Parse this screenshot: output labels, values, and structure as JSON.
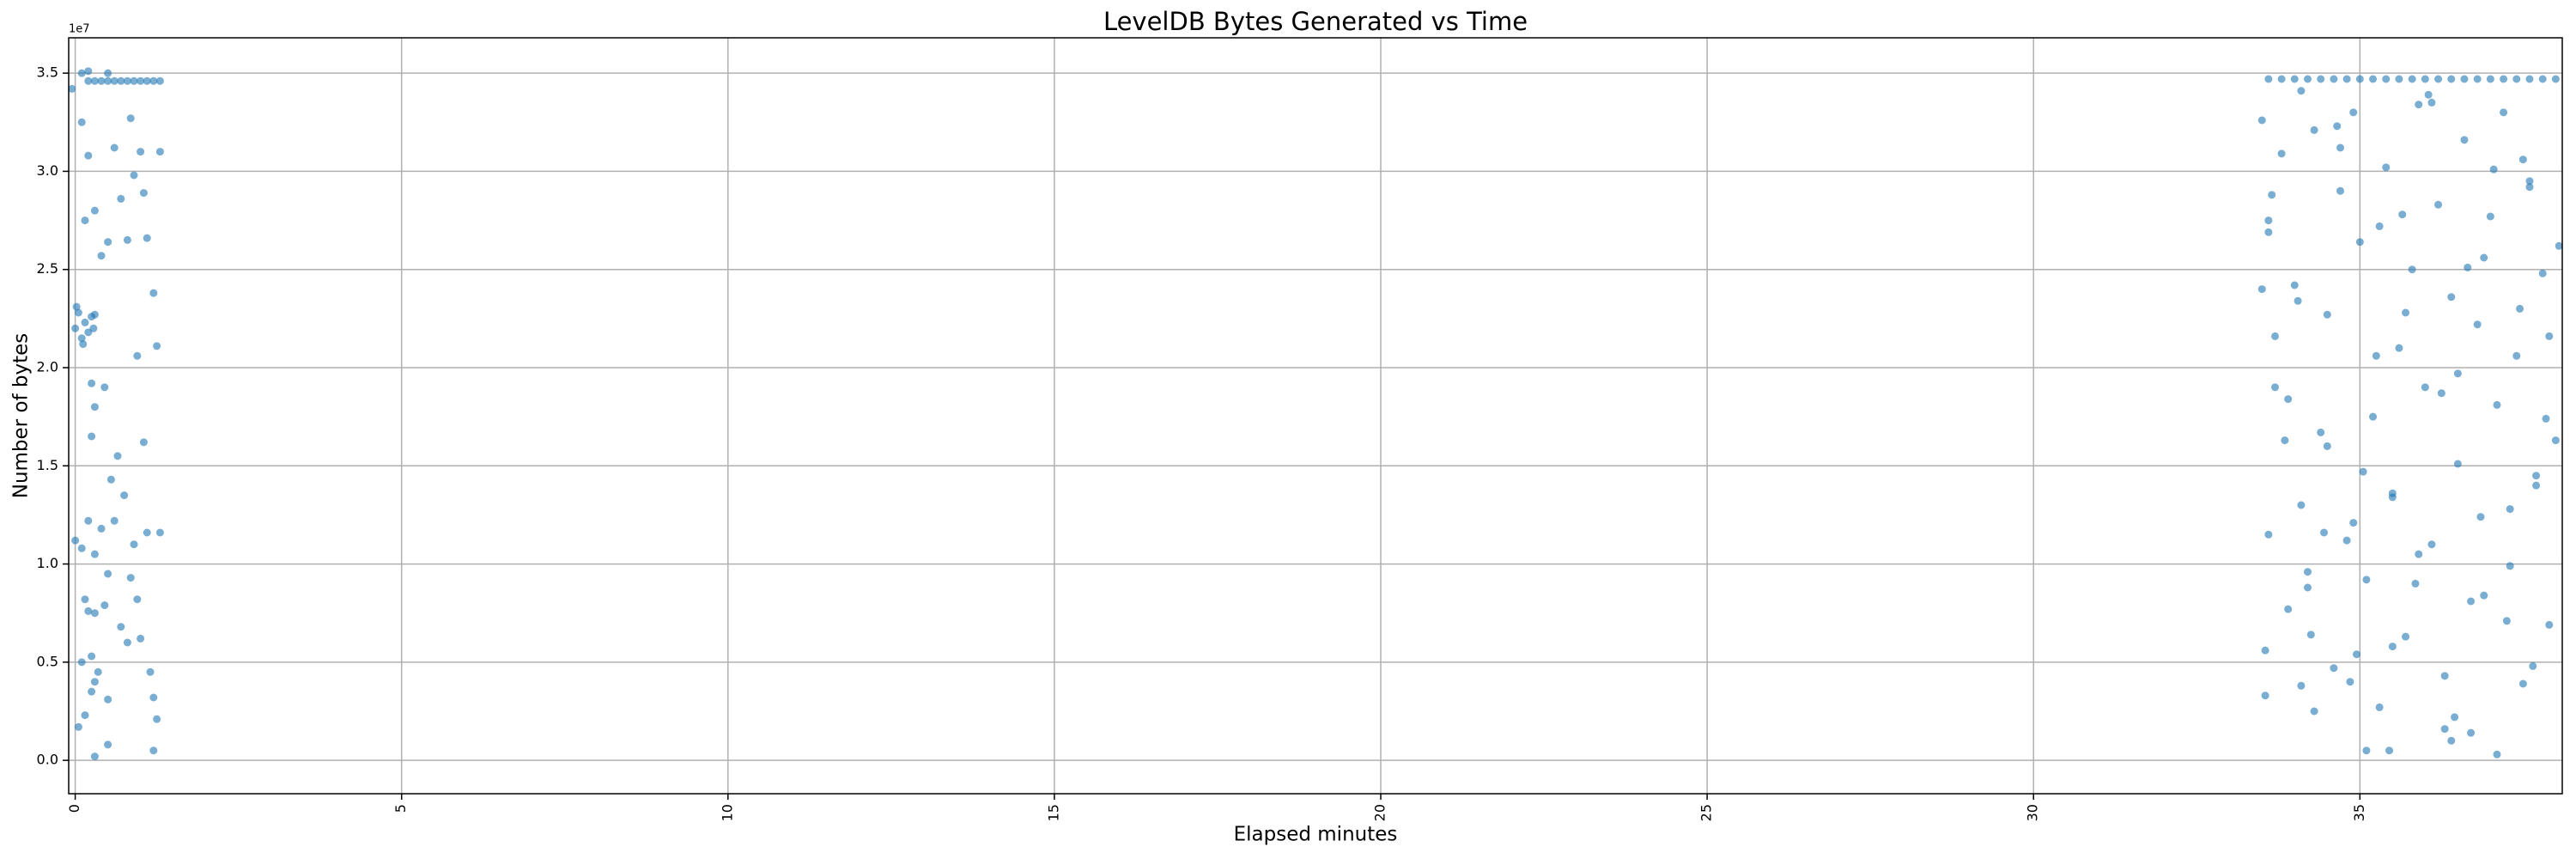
{
  "chart_data": {
    "type": "scatter",
    "title": "LevelDB Bytes Generated vs Time",
    "x_label": "Elapsed minutes",
    "y_label": "Number of bytes",
    "y_offset_label": "1e7",
    "color": "#1f77b4",
    "grid": true,
    "xlim": [
      -0.1,
      38.1
    ],
    "ylim": [
      -1700000,
      36800000
    ],
    "xticks": [
      0,
      5,
      10,
      15,
      20,
      25,
      30,
      35
    ],
    "yticks": [
      {
        "value": 0,
        "label": "0.0"
      },
      {
        "value": 5000000,
        "label": "0.5"
      },
      {
        "value": 10000000,
        "label": "1.0"
      },
      {
        "value": 15000000,
        "label": "1.5"
      },
      {
        "value": 20000000,
        "label": "2.0"
      },
      {
        "value": 25000000,
        "label": "2.5"
      },
      {
        "value": 30000000,
        "label": "3.0"
      },
      {
        "value": 35000000,
        "label": "3.5"
      }
    ],
    "x": [
      0.2,
      0.3,
      0.4,
      0.5,
      0.6,
      0.7,
      0.8,
      0.9,
      1.0,
      1.1,
      1.2,
      1.3,
      0.1,
      0.2,
      0.5,
      -0.05,
      0,
      0.05,
      0.1,
      0.15,
      0.2,
      0.25,
      0.3,
      0.02,
      0.12,
      0.28,
      0.1,
      0.2,
      0.3,
      0.5,
      0.6,
      0.7,
      0.8,
      0.9,
      1.0,
      1.1,
      1.2,
      1.3,
      0.15,
      0.4,
      0.85,
      1.05,
      1.25,
      0.95,
      0.25,
      0.45,
      0.3,
      0.25,
      0.65,
      0.75,
      0.55,
      1.05,
      1.3,
      1.1,
      0.2,
      0.4,
      0.1,
      0.3,
      0.5,
      0.6,
      0.85,
      0.95,
      1.0,
      0.2,
      0.3,
      0.45,
      0.7,
      0.8,
      0.25,
      0.35,
      0.25,
      0.3,
      0.5,
      0.05,
      0.15,
      0.3,
      0.5,
      1.15,
      1.2,
      1.25,
      1.2,
      0.0,
      0.1,
      0.9,
      0.15,
      33.6,
      33.8,
      34.0,
      34.2,
      34.4,
      34.6,
      34.8,
      35.0,
      35.2,
      35.4,
      35.6,
      35.8,
      36.0,
      36.2,
      36.4,
      36.6,
      36.8,
      37.0,
      37.2,
      37.4,
      37.6,
      37.8,
      38.0,
      33.5,
      33.6,
      33.7,
      33.8,
      33.9,
      34.0,
      34.1,
      34.2,
      34.3,
      34.4,
      34.5,
      34.6,
      34.7,
      34.8,
      34.9,
      35.0,
      35.1,
      35.2,
      35.3,
      35.4,
      35.5,
      35.6,
      35.7,
      35.8,
      35.9,
      36.0,
      36.1,
      36.2,
      36.3,
      36.4,
      36.5,
      36.6,
      36.7,
      36.8,
      36.9,
      37.0,
      37.1,
      37.2,
      37.3,
      37.4,
      37.5,
      37.6,
      37.7,
      37.8,
      37.9,
      38.0,
      33.5,
      33.7,
      33.9,
      34.1,
      34.3,
      34.5,
      34.7,
      34.9,
      35.1,
      35.3,
      35.5,
      35.7,
      35.9,
      36.1,
      36.3,
      36.5,
      36.7,
      36.9,
      37.1,
      37.3,
      37.5,
      37.7,
      37.9,
      33.55,
      33.65,
      33.85,
      34.05,
      34.25,
      34.45,
      34.65,
      34.85,
      35.05,
      35.25,
      35.45,
      35.65,
      35.85,
      36.05,
      36.25,
      36.45,
      36.65,
      36.85,
      37.05,
      37.25,
      37.45,
      37.65,
      37.85,
      38.05,
      33.55,
      33.6,
      34.1,
      34.2,
      33.6,
      34.95,
      35.5,
      36.4,
      37.6
    ],
    "values": [
      34600000,
      34600000,
      34600000,
      34600000,
      34600000,
      34600000,
      34600000,
      34600000,
      34600000,
      34600000,
      34600000,
      34600000,
      35000000,
      35100000,
      35000000,
      34200000,
      22000000,
      22800000,
      21500000,
      22300000,
      21800000,
      22600000,
      22700000,
      23100000,
      21200000,
      22000000,
      32500000,
      30800000,
      28000000,
      26400000,
      31200000,
      28600000,
      26500000,
      29800000,
      31000000,
      26600000,
      23800000,
      31000000,
      27500000,
      25700000,
      32700000,
      28900000,
      21100000,
      20600000,
      19200000,
      19000000,
      18000000,
      16500000,
      15500000,
      13500000,
      14300000,
      16200000,
      11600000,
      11600000,
      12200000,
      11800000,
      10800000,
      10500000,
      9500000,
      12200000,
      9300000,
      8200000,
      6200000,
      7600000,
      7500000,
      7900000,
      6800000,
      6000000,
      5300000,
      4500000,
      3500000,
      4000000,
      3100000,
      1700000,
      2300000,
      200000,
      800000,
      4500000,
      3200000,
      2100000,
      500000,
      11200000,
      5000000,
      11000000,
      8200000,
      34700000,
      34700000,
      34700000,
      34700000,
      34700000,
      34700000,
      34700000,
      34700000,
      34700000,
      34700000,
      34700000,
      34700000,
      34700000,
      34700000,
      34700000,
      34700000,
      34700000,
      34700000,
      34700000,
      34700000,
      34700000,
      34700000,
      34700000,
      32600000,
      27500000,
      21600000,
      30900000,
      18400000,
      24200000,
      13000000,
      8800000,
      32100000,
      16700000,
      22700000,
      4700000,
      29000000,
      11200000,
      33000000,
      26400000,
      9200000,
      17500000,
      2700000,
      30200000,
      13600000,
      21000000,
      6300000,
      25000000,
      33400000,
      19000000,
      11000000,
      28300000,
      4300000,
      23600000,
      15100000,
      31600000,
      1400000,
      22200000,
      8400000,
      27700000,
      18100000,
      33000000,
      9900000,
      20600000,
      3900000,
      29500000,
      14000000,
      24800000,
      6900000,
      16300000,
      24000000,
      19000000,
      7700000,
      34100000,
      2500000,
      16000000,
      31200000,
      12100000,
      500000,
      27200000,
      5800000,
      22800000,
      10500000,
      33500000,
      1600000,
      19700000,
      8100000,
      25600000,
      300000,
      12800000,
      30600000,
      14500000,
      21600000,
      3300000,
      28800000,
      16300000,
      23400000,
      6400000,
      11600000,
      32300000,
      4000000,
      14700000,
      20600000,
      500000,
      27800000,
      9000000,
      33900000,
      18700000,
      2200000,
      25100000,
      12400000,
      30100000,
      7100000,
      23000000,
      4800000,
      17400000,
      26200000,
      5600000,
      11500000,
      3800000,
      9600000,
      26900000,
      5400000,
      13400000,
      1000000,
      29200000
    ]
  }
}
